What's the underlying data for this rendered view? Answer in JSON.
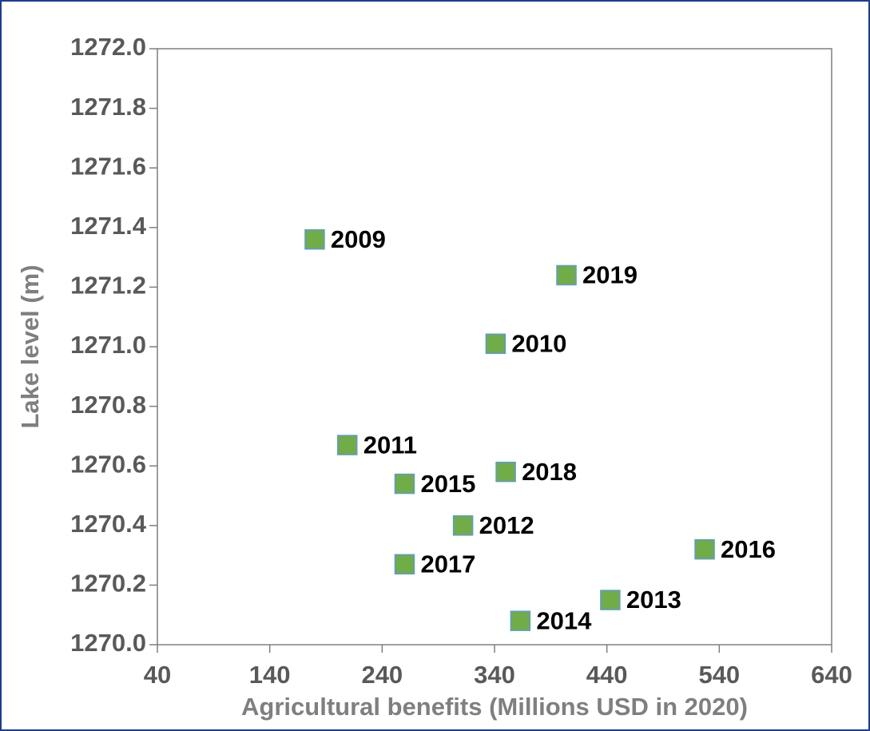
{
  "chart_data": {
    "type": "scatter",
    "x_label": "Agricultural benefits (Millions USD in 2020)",
    "y_label": "Lake level (m)",
    "labels": [
      "2009",
      "2010",
      "2011",
      "2012",
      "2013",
      "2014",
      "2015",
      "2016",
      "2017",
      "2018",
      "2019"
    ],
    "x": [
      180,
      341,
      209,
      312,
      443,
      363,
      260,
      527,
      260,
      350,
      404
    ],
    "y": [
      1271.36,
      1271.01,
      1270.67,
      1270.4,
      1270.15,
      1270.08,
      1270.54,
      1270.32,
      1270.27,
      1270.58,
      1271.24
    ],
    "color": "#70ad47",
    "edge_color": "#5b9bd5",
    "xlim": [
      40,
      640
    ],
    "xticks": [
      40,
      140,
      240,
      340,
      440,
      540,
      640
    ],
    "ylim": [
      1270.0,
      1272.0
    ],
    "yticks": [
      {
        "value": 1270.0,
        "label": "1270.0"
      },
      {
        "value": 1270.2,
        "label": "1270.2"
      },
      {
        "value": 1270.4,
        "label": "1270.4"
      },
      {
        "value": 1270.6,
        "label": "1270.6"
      },
      {
        "value": 1270.8,
        "label": "1270.8"
      },
      {
        "value": 1271.0,
        "label": "1271.0"
      },
      {
        "value": 1271.2,
        "label": "1271.2"
      },
      {
        "value": 1271.4,
        "label": "1271.4"
      },
      {
        "value": 1271.6,
        "label": "1271.6"
      },
      {
        "value": 1271.8,
        "label": "1271.8"
      },
      {
        "value": 1272.0,
        "label": "1272.0"
      }
    ],
    "grid": false
  }
}
